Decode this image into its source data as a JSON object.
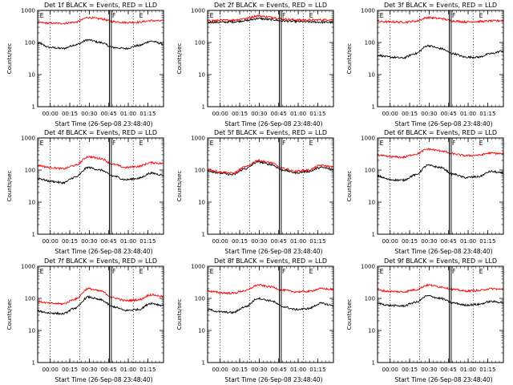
{
  "chart_data": [
    {
      "type": "line",
      "title": "Det 1f BLACK = Events, RED = LLD",
      "ylabel": "Counts/sec",
      "xlabel": "Start Time (26-Sep-08 23:48:40)",
      "yscale": "log",
      "ylim": [
        1,
        1000
      ],
      "xlim": [
        0,
        100
      ],
      "grid": "dotted vertical",
      "markers": [
        "E",
        "F",
        "E"
      ],
      "series": [
        {
          "color": "#000000",
          "x": [
            0,
            10,
            20,
            30,
            40,
            50,
            60,
            70,
            80,
            90,
            100
          ],
          "y": [
            95,
            70,
            65,
            85,
            120,
            100,
            70,
            65,
            80,
            110,
            90
          ]
        },
        {
          "color": "#ff0000",
          "x": [
            0,
            10,
            20,
            30,
            40,
            50,
            60,
            70,
            80,
            90,
            100
          ],
          "y": [
            420,
            400,
            395,
            430,
            600,
            550,
            450,
            420,
            430,
            480,
            470
          ]
        }
      ]
    },
    {
      "type": "line",
      "title": "Det 2f BLACK = Events, RED = LLD",
      "ylabel": "Counts/sec",
      "xlabel": "Start Time (26-Sep-08 23:48:40)",
      "yscale": "log",
      "ylim": [
        1,
        1000
      ],
      "xlim": [
        0,
        100
      ],
      "grid": "dotted vertical",
      "markers": [
        "E",
        "F",
        "E"
      ],
      "series": [
        {
          "color": "#000000",
          "x": [
            0,
            10,
            20,
            30,
            40,
            50,
            60,
            70,
            80,
            90,
            100
          ],
          "y": [
            430,
            430,
            440,
            480,
            560,
            520,
            470,
            450,
            440,
            430,
            430
          ]
        },
        {
          "color": "#ff0000",
          "x": [
            0,
            10,
            20,
            30,
            40,
            50,
            60,
            70,
            80,
            90,
            100
          ],
          "y": [
            480,
            490,
            500,
            560,
            680,
            620,
            540,
            510,
            500,
            510,
            520
          ]
        }
      ]
    },
    {
      "type": "line",
      "title": "Det 3f BLACK = Events, RED = LLD",
      "ylabel": "Counts/sec",
      "xlabel": "Start Time (26-Sep-08 23:48:40)",
      "yscale": "log",
      "ylim": [
        1,
        1000
      ],
      "xlim": [
        0,
        100
      ],
      "grid": "dotted vertical",
      "markers": [
        "E",
        "F",
        "E"
      ],
      "series": [
        {
          "color": "#000000",
          "x": [
            0,
            10,
            20,
            30,
            40,
            50,
            60,
            70,
            80,
            90,
            100
          ],
          "y": [
            40,
            35,
            33,
            45,
            80,
            65,
            45,
            35,
            35,
            45,
            55
          ]
        },
        {
          "color": "#ff0000",
          "x": [
            0,
            10,
            20,
            30,
            40,
            50,
            60,
            70,
            80,
            90,
            100
          ],
          "y": [
            450,
            440,
            430,
            460,
            600,
            560,
            470,
            440,
            450,
            470,
            480
          ]
        }
      ]
    },
    {
      "type": "line",
      "title": "Det 4f BLACK = Events, RED = LLD",
      "ylabel": "Counts/sec",
      "xlabel": "Start Time (26-Sep-08 23:48:40)",
      "yscale": "log",
      "ylim": [
        1,
        1000
      ],
      "xlim": [
        0,
        100
      ],
      "grid": "dotted vertical",
      "markers": [
        "E",
        "F",
        "E"
      ],
      "series": [
        {
          "color": "#000000",
          "x": [
            0,
            10,
            20,
            30,
            40,
            50,
            60,
            70,
            80,
            90,
            100
          ],
          "y": [
            55,
            45,
            40,
            60,
            120,
            100,
            65,
            50,
            55,
            80,
            70
          ]
        },
        {
          "color": "#ff0000",
          "x": [
            0,
            10,
            20,
            30,
            40,
            50,
            60,
            70,
            80,
            90,
            100
          ],
          "y": [
            140,
            120,
            110,
            140,
            260,
            230,
            150,
            120,
            130,
            170,
            160
          ]
        }
      ]
    },
    {
      "type": "line",
      "title": "Det 5f BLACK = Events, RED = LLD",
      "ylabel": "Counts/sec",
      "xlabel": "Start Time (26-Sep-08 23:48:40)",
      "yscale": "log",
      "ylim": [
        1,
        1000
      ],
      "xlim": [
        0,
        100
      ],
      "grid": "dotted vertical",
      "markers": [
        "E",
        "F",
        "E"
      ],
      "series": [
        {
          "color": "#000000",
          "x": [
            0,
            10,
            20,
            30,
            40,
            50,
            60,
            70,
            80,
            90,
            100
          ],
          "y": [
            95,
            80,
            72,
            110,
            180,
            150,
            100,
            82,
            90,
            120,
            105
          ]
        },
        {
          "color": "#ff0000",
          "x": [
            0,
            10,
            20,
            30,
            40,
            50,
            60,
            70,
            80,
            90,
            100
          ],
          "y": [
            105,
            88,
            80,
            125,
            200,
            170,
            112,
            92,
            100,
            140,
            125
          ]
        }
      ]
    },
    {
      "type": "line",
      "title": "Det 6f BLACK = Events, RED = LLD",
      "ylabel": "Counts/sec",
      "xlabel": "Start Time (26-Sep-08 23:48:40)",
      "yscale": "log",
      "ylim": [
        1,
        1000
      ],
      "xlim": [
        0,
        100
      ],
      "grid": "dotted vertical",
      "markers": [
        "E",
        "F",
        "E"
      ],
      "series": [
        {
          "color": "#000000",
          "x": [
            0,
            10,
            20,
            30,
            40,
            50,
            60,
            70,
            80,
            90,
            100
          ],
          "y": [
            65,
            50,
            48,
            70,
            140,
            120,
            75,
            58,
            62,
            90,
            80
          ]
        },
        {
          "color": "#ff0000",
          "x": [
            0,
            10,
            20,
            30,
            40,
            50,
            60,
            70,
            80,
            90,
            100
          ],
          "y": [
            290,
            260,
            250,
            310,
            450,
            400,
            320,
            280,
            290,
            340,
            320
          ]
        }
      ]
    },
    {
      "type": "line",
      "title": "Det 7f BLACK = Events, RED = LLD",
      "ylabel": "Counts/sec",
      "xlabel": "Start Time (26-Sep-08 23:48:40)",
      "yscale": "log",
      "ylim": [
        1,
        1000
      ],
      "xlim": [
        0,
        100
      ],
      "grid": "dotted vertical",
      "markers": [
        "E",
        "F",
        "E"
      ],
      "series": [
        {
          "color": "#000000",
          "x": [
            0,
            10,
            20,
            30,
            40,
            50,
            60,
            70,
            80,
            90,
            100
          ],
          "y": [
            40,
            35,
            33,
            50,
            110,
            90,
            55,
            42,
            45,
            70,
            60
          ]
        },
        {
          "color": "#ff0000",
          "x": [
            0,
            10,
            20,
            30,
            40,
            50,
            60,
            70,
            80,
            90,
            100
          ],
          "y": [
            80,
            70,
            68,
            95,
            200,
            170,
            105,
            85,
            90,
            130,
            115
          ]
        }
      ]
    },
    {
      "type": "line",
      "title": "Det 8f BLACK = Events, RED = LLD",
      "ylabel": "Counts/sec",
      "xlabel": "Start Time (26-Sep-08 23:48:40)",
      "yscale": "log",
      "ylim": [
        1,
        1000
      ],
      "xlim": [
        0,
        100
      ],
      "grid": "dotted vertical",
      "markers": [
        "E",
        "F",
        "E"
      ],
      "series": [
        {
          "color": "#000000",
          "x": [
            0,
            10,
            20,
            30,
            40,
            50,
            60,
            70,
            80,
            90,
            100
          ],
          "y": [
            45,
            38,
            36,
            55,
            100,
            85,
            55,
            45,
            48,
            70,
            60
          ]
        },
        {
          "color": "#ff0000",
          "x": [
            0,
            10,
            20,
            30,
            40,
            50,
            60,
            70,
            80,
            90,
            100
          ],
          "y": [
            170,
            150,
            145,
            175,
            260,
            230,
            180,
            160,
            165,
            200,
            190
          ]
        }
      ]
    },
    {
      "type": "line",
      "title": "Det 9f BLACK = Events, RED = LLD",
      "ylabel": "Counts/sec",
      "xlabel": "Start Time (26-Sep-08 23:48:40)",
      "yscale": "log",
      "ylim": [
        1,
        1000
      ],
      "xlim": [
        0,
        100
      ],
      "grid": "dotted vertical",
      "markers": [
        "E",
        "F",
        "E"
      ],
      "series": [
        {
          "color": "#000000",
          "x": [
            0,
            10,
            20,
            30,
            40,
            50,
            60,
            70,
            80,
            90,
            100
          ],
          "y": [
            70,
            60,
            58,
            75,
            120,
            100,
            72,
            62,
            65,
            80,
            75
          ]
        },
        {
          "color": "#ff0000",
          "x": [
            0,
            10,
            20,
            30,
            40,
            50,
            60,
            70,
            80,
            90,
            100
          ],
          "y": [
            180,
            165,
            160,
            185,
            260,
            230,
            190,
            170,
            175,
            200,
            190
          ]
        }
      ]
    }
  ],
  "yticks": [
    "1",
    "10",
    "100",
    "1000"
  ],
  "xticks": [
    "00:00",
    "00:15",
    "00:30",
    "00:45",
    "01:00",
    "01:15"
  ]
}
